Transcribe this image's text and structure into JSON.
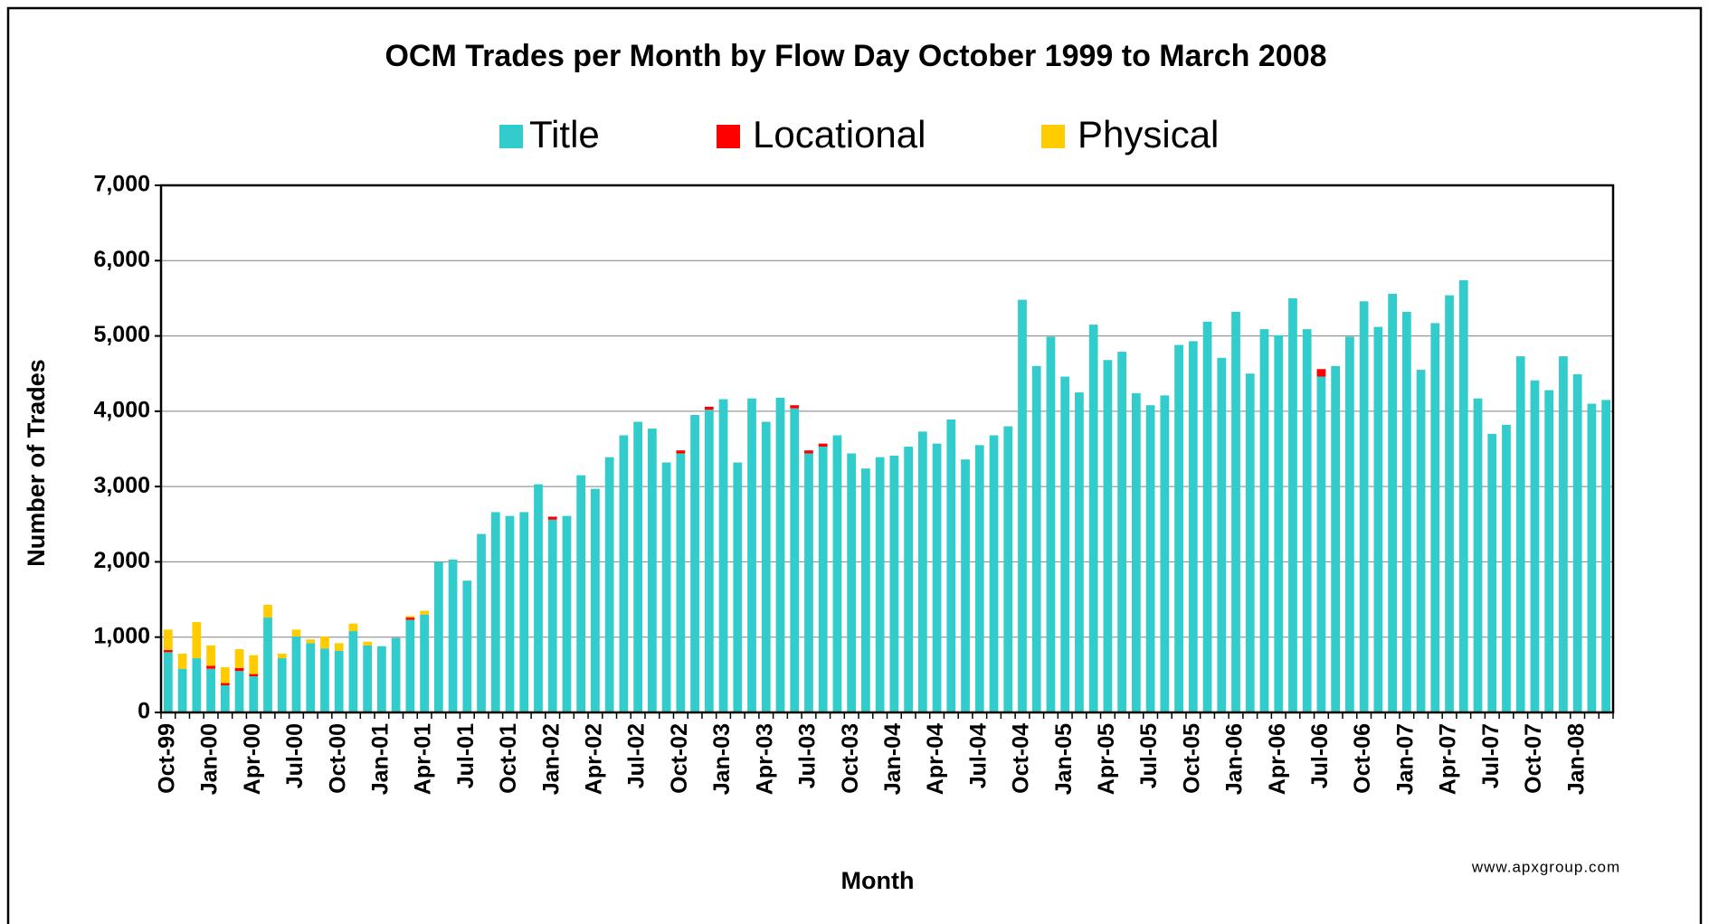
{
  "chart_data": {
    "type": "stacked_bar",
    "title": "OCM Trades per Month by Flow Day October 1999 to March 2008",
    "ylabel": "Number of Trades",
    "xlabel": "Month",
    "source": "www.apxgroup.com",
    "categories": [
      "Oct-99",
      null,
      null,
      "Jan-00",
      null,
      null,
      "Apr-00",
      null,
      null,
      "Jul-00",
      null,
      null,
      "Oct-00",
      null,
      null,
      "Jan-01",
      null,
      null,
      "Apr-01",
      null,
      null,
      "Jul-01",
      null,
      null,
      "Oct-01",
      null,
      null,
      "Jan-02",
      null,
      null,
      "Apr-02",
      null,
      null,
      "Jul-02",
      null,
      null,
      "Oct-02",
      null,
      null,
      "Jan-03",
      null,
      null,
      "Apr-03",
      null,
      null,
      "Jul-03",
      null,
      null,
      "Oct-03",
      null,
      null,
      "Jan-04",
      null,
      null,
      "Apr-04",
      null,
      null,
      "Jul-04",
      null,
      null,
      "Oct-04",
      null,
      null,
      "Jan-05",
      null,
      null,
      "Apr-05",
      null,
      null,
      "Jul-05",
      null,
      null,
      "Oct-05",
      null,
      null,
      "Jan-06",
      null,
      null,
      "Apr-06",
      null,
      null,
      "Jul-06",
      null,
      null,
      "Oct-06",
      null,
      null,
      "Jan-07",
      null,
      null,
      "Apr-07",
      null,
      null,
      "Jul-07",
      null,
      null,
      "Oct-07",
      null,
      null,
      "Jan-08",
      null,
      null
    ],
    "series": [
      {
        "name": "Title",
        "color": "#33cccc",
        "values": [
          800,
          580,
          720,
          580,
          360,
          550,
          480,
          1260,
          720,
          1010,
          920,
          850,
          820,
          1080,
          890,
          880,
          990,
          1230,
          1300,
          2000,
          2030,
          1750,
          2370,
          2660,
          2610,
          2660,
          3030,
          2560,
          2610,
          3150,
          2970,
          3390,
          3680,
          3860,
          3770,
          3320,
          3440,
          3950,
          4020,
          4160,
          3320,
          4170,
          3860,
          4180,
          4040,
          3440,
          3530,
          3680,
          3440,
          3240,
          3390,
          3410,
          3530,
          3730,
          3570,
          3890,
          3360,
          3550,
          3680,
          3800,
          5480,
          4600,
          4990,
          4460,
          4250,
          5150,
          4680,
          4790,
          4240,
          4080,
          4210,
          4880,
          4930,
          5190,
          4710,
          5320,
          4500,
          5090,
          5010,
          5500,
          5090,
          4460,
          4600,
          4990,
          5460,
          5120,
          5560,
          5320,
          4550,
          5170,
          5540,
          5740,
          4170,
          3700,
          3820,
          4730,
          4410,
          4280,
          4730,
          4490,
          4100,
          4150
        ]
      },
      {
        "name": "Locational",
        "color": "#ff0000",
        "values": [
          30,
          0,
          0,
          40,
          30,
          40,
          30,
          0,
          0,
          0,
          0,
          0,
          0,
          0,
          0,
          0,
          0,
          30,
          0,
          0,
          0,
          0,
          0,
          0,
          0,
          0,
          0,
          40,
          0,
          0,
          0,
          0,
          0,
          0,
          0,
          0,
          40,
          0,
          40,
          0,
          0,
          0,
          0,
          0,
          40,
          40,
          40,
          0,
          0,
          0,
          0,
          0,
          0,
          0,
          0,
          0,
          0,
          0,
          0,
          0,
          0,
          0,
          0,
          0,
          0,
          0,
          0,
          0,
          0,
          0,
          0,
          0,
          0,
          0,
          0,
          0,
          0,
          0,
          0,
          0,
          0,
          100,
          0,
          0,
          0,
          0,
          0,
          0,
          0,
          0,
          0,
          0,
          0,
          0,
          0,
          0,
          0,
          0,
          0,
          0,
          0,
          0
        ]
      },
      {
        "name": "Physical",
        "color": "#ffcc00",
        "values": [
          270,
          200,
          480,
          270,
          210,
          250,
          250,
          170,
          60,
          90,
          50,
          160,
          100,
          100,
          50,
          0,
          0,
          20,
          50,
          0,
          0,
          0,
          0,
          0,
          0,
          0,
          0,
          0,
          0,
          0,
          0,
          0,
          0,
          0,
          0,
          0,
          0,
          0,
          0,
          0,
          0,
          0,
          0,
          0,
          0,
          0,
          0,
          0,
          0,
          0,
          0,
          0,
          0,
          0,
          0,
          0,
          0,
          0,
          0,
          0,
          0,
          0,
          0,
          0,
          0,
          0,
          0,
          0,
          0,
          0,
          0,
          0,
          0,
          0,
          0,
          0,
          0,
          0,
          0,
          0,
          0,
          0,
          0,
          0,
          0,
          0,
          0,
          0,
          0,
          0,
          0,
          0,
          0,
          0,
          0,
          0,
          0,
          0,
          0,
          0,
          0,
          0
        ]
      }
    ],
    "ylim": [
      0,
      7000
    ],
    "yticks": [
      0,
      {
        "value": 1000,
        "label": "1,000"
      },
      {
        "value": 2000,
        "label": "2,000"
      },
      {
        "value": 3000,
        "label": "3,000"
      },
      {
        "value": 4000,
        "label": "4,000"
      },
      {
        "value": 5000,
        "label": "5,000"
      },
      {
        "value": 6000,
        "label": "6,000"
      },
      {
        "value": 7000,
        "label": "7,000"
      }
    ],
    "grid": true
  }
}
